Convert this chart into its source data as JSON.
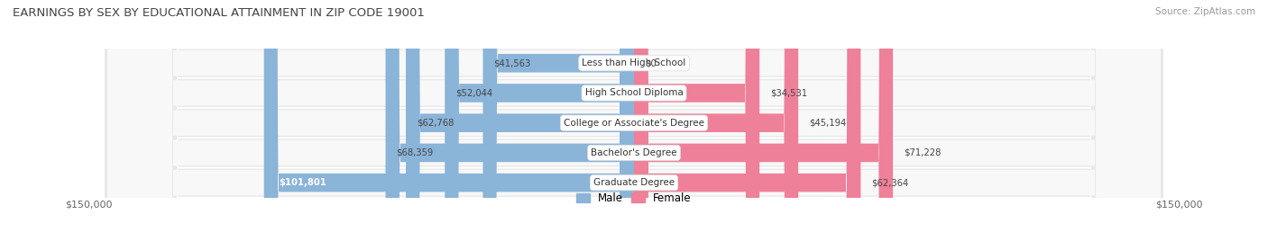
{
  "title": "EARNINGS BY SEX BY EDUCATIONAL ATTAINMENT IN ZIP CODE 19001",
  "source": "Source: ZipAtlas.com",
  "categories": [
    "Less than High School",
    "High School Diploma",
    "College or Associate's Degree",
    "Bachelor's Degree",
    "Graduate Degree"
  ],
  "male_values": [
    41563,
    52044,
    62768,
    68359,
    101801
  ],
  "female_values": [
    0,
    34531,
    45194,
    71228,
    62364
  ],
  "male_color": "#8ab4d8",
  "female_color": "#ee8099",
  "max_val": 150000,
  "bg_color": "#ffffff",
  "title_color": "#444444",
  "label_fontsize": 7.5,
  "value_fontsize": 7.2,
  "title_fontsize": 9.5
}
